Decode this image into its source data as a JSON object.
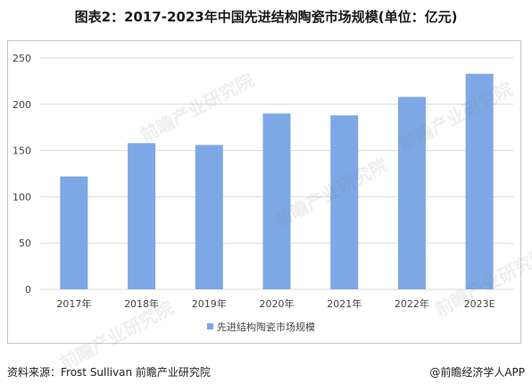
{
  "title": "图表2：2017-2023年中国先进结构陶瓷市场规模(单位：亿元)",
  "chart_data": {
    "type": "bar",
    "categories": [
      "2017年",
      "2018年",
      "2019年",
      "2020年",
      "2021年",
      "2022年",
      "2023E"
    ],
    "series": [
      {
        "name": "先进结构陶瓷市场规模",
        "values": [
          122,
          158,
          156,
          190,
          188,
          208,
          233
        ]
      }
    ],
    "ylim": [
      0,
      250
    ],
    "yticks": [
      0,
      50,
      100,
      150,
      200,
      250
    ],
    "grid": true,
    "legend": "bottom",
    "bar_color": "#7ea7e6"
  },
  "watermark": {
    "text": "前瞻产业研究院"
  },
  "footer": {
    "source": "资料来源：Frost Sullivan 前瞻产业研究院",
    "brand": "@前瞻经济学人APP"
  }
}
